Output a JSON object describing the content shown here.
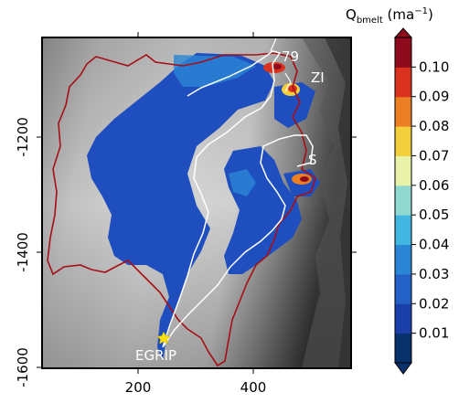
{
  "map": {
    "x_ticks": [
      "200",
      "400"
    ],
    "y_ticks": [
      "-1200",
      "-1400",
      "-1600"
    ],
    "labels": {
      "site_79": "79",
      "site_zi": "ZI",
      "site_s": "S",
      "drill_site": "EGRIP"
    },
    "drill_marker_icon": "star-icon"
  },
  "colorbar": {
    "title_main": "Q",
    "title_sub": "bmelt",
    "title_unit": " (ma",
    "title_exp": "−1",
    "title_close": ")",
    "ticks": [
      "0.01",
      "0.02",
      "0.03",
      "0.04",
      "0.05",
      "0.06",
      "0.07",
      "0.08",
      "0.09",
      "0.10"
    ],
    "colors": [
      "#08306b",
      "#1a3fa8",
      "#2461c7",
      "#2a86d4",
      "#41b6e0",
      "#8fd9d0",
      "#e8f2a8",
      "#f2cf3c",
      "#ec7f24",
      "#d9321e",
      "#8e0b1d"
    ]
  },
  "colors": {
    "outline_red": "#a50f15",
    "outline_white": "#ffffff",
    "melt_blue": "#1f4fbf",
    "marker_yellow": "#ffe000"
  }
}
